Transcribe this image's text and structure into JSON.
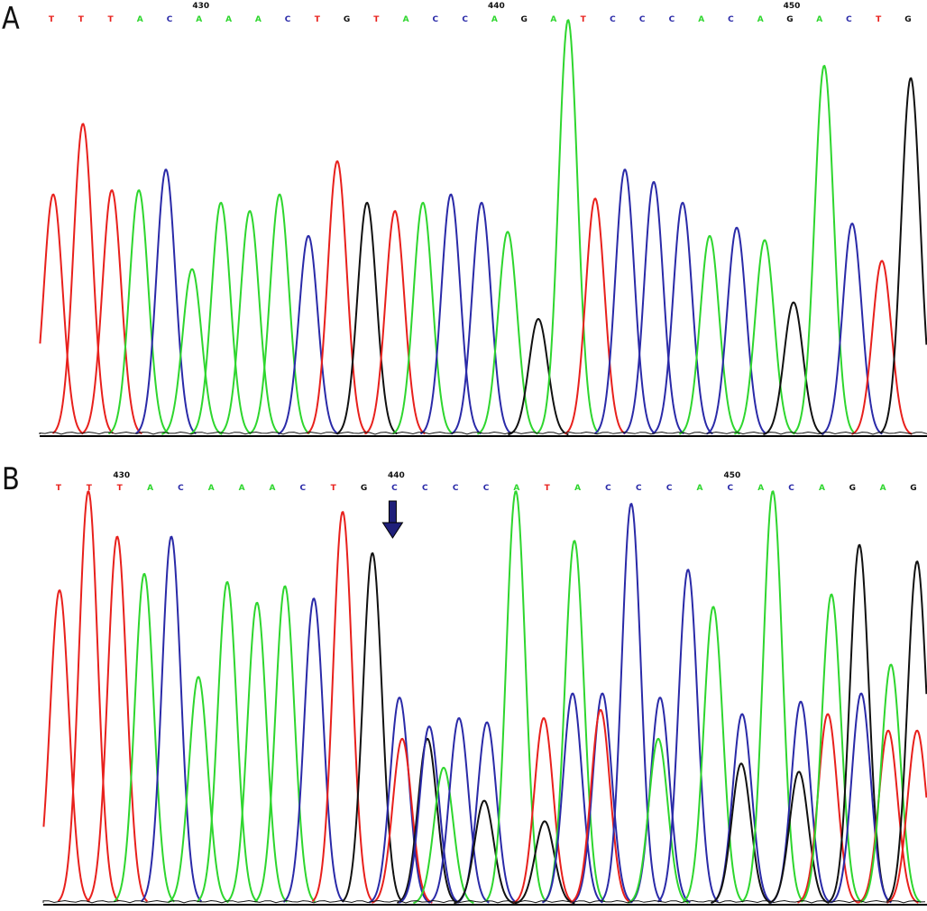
{
  "colors": {
    "A": "#2ed62e",
    "C": "#2a2aa8",
    "G": "#111111",
    "T": "#e8201c",
    "axis": "#000000"
  },
  "chart_data": [
    {
      "type": "line",
      "panel": "A",
      "sequence": [
        "T",
        "T",
        "T",
        "A",
        "C",
        "A",
        "A",
        "A",
        "C",
        "T",
        "G",
        "T",
        "A",
        "C",
        "C",
        "A",
        "G",
        "A",
        "T",
        "C",
        "C",
        "C",
        "A",
        "C",
        "A",
        "G",
        "A",
        "C",
        "T",
        "G"
      ],
      "position_labels": [
        {
          "label": "430",
          "base_index": 5
        },
        {
          "label": "440",
          "base_index": 15
        },
        {
          "label": "450",
          "base_index": 25
        }
      ],
      "peaks": [
        {
          "base": "T",
          "x": 59,
          "h": 0.58
        },
        {
          "base": "T",
          "x": 92,
          "h": 0.75
        },
        {
          "base": "T",
          "x": 124,
          "h": 0.59
        },
        {
          "base": "A",
          "x": 154,
          "h": 0.59
        },
        {
          "base": "C",
          "x": 184,
          "h": 0.64
        },
        {
          "base": "A",
          "x": 213,
          "h": 0.4
        },
        {
          "base": "A",
          "x": 245,
          "h": 0.56
        },
        {
          "base": "A",
          "x": 277,
          "h": 0.54
        },
        {
          "base": "A",
          "x": 310,
          "h": 0.58
        },
        {
          "base": "C",
          "x": 342,
          "h": 0.48
        },
        {
          "base": "T",
          "x": 374,
          "h": 0.66
        },
        {
          "base": "G",
          "x": 407,
          "h": 0.56
        },
        {
          "base": "T",
          "x": 438,
          "h": 0.54
        },
        {
          "base": "A",
          "x": 469,
          "h": 0.56
        },
        {
          "base": "C",
          "x": 500,
          "h": 0.58
        },
        {
          "base": "C",
          "x": 534,
          "h": 0.56
        },
        {
          "base": "A",
          "x": 563,
          "h": 0.49
        },
        {
          "base": "G",
          "x": 597,
          "h": 0.28
        },
        {
          "base": "A",
          "x": 630,
          "h": 1.0
        },
        {
          "base": "T",
          "x": 660,
          "h": 0.57
        },
        {
          "base": "C",
          "x": 693,
          "h": 0.64
        },
        {
          "base": "C",
          "x": 725,
          "h": 0.61
        },
        {
          "base": "C",
          "x": 757,
          "h": 0.56
        },
        {
          "base": "A",
          "x": 787,
          "h": 0.48
        },
        {
          "base": "C",
          "x": 817,
          "h": 0.5
        },
        {
          "base": "A",
          "x": 848,
          "h": 0.47
        },
        {
          "base": "G",
          "x": 880,
          "h": 0.32
        },
        {
          "base": "A",
          "x": 914,
          "h": 0.89
        },
        {
          "base": "C",
          "x": 945,
          "h": 0.51
        },
        {
          "base": "T",
          "x": 978,
          "h": 0.42
        },
        {
          "base": "G",
          "x": 1010,
          "h": 0.86
        }
      ]
    },
    {
      "type": "line",
      "panel": "B",
      "sequence": [
        "T",
        "T",
        "T",
        "A",
        "C",
        "A",
        "A",
        "A",
        "C",
        "T",
        "G",
        "C",
        "C",
        "C",
        "C",
        "A",
        "T",
        "A",
        "C",
        "C",
        "C",
        "A",
        "C",
        "A",
        "C",
        "A",
        "G",
        "A",
        "G"
      ],
      "position_labels": [
        {
          "label": "430",
          "base_index": 2
        },
        {
          "label": "440",
          "base_index": 11
        },
        {
          "label": "450",
          "base_index": 22
        }
      ],
      "marker": {
        "type": "arrow-down",
        "base_index": 11
      },
      "peaks": [
        {
          "base": "T",
          "x": 66,
          "h": 0.76
        },
        {
          "base": "T",
          "x": 98,
          "h": 1.0
        },
        {
          "base": "T",
          "x": 130,
          "h": 0.89
        },
        {
          "base": "A",
          "x": 160,
          "h": 0.8
        },
        {
          "base": "C",
          "x": 190,
          "h": 0.89
        },
        {
          "base": "A",
          "x": 220,
          "h": 0.55
        },
        {
          "base": "A",
          "x": 252,
          "h": 0.78
        },
        {
          "base": "A",
          "x": 285,
          "h": 0.73
        },
        {
          "base": "A",
          "x": 316,
          "h": 0.77
        },
        {
          "base": "C",
          "x": 348,
          "h": 0.74
        },
        {
          "base": "T",
          "x": 380,
          "h": 0.95
        },
        {
          "base": "G",
          "x": 413,
          "h": 0.85
        },
        {
          "base": "C",
          "x": 443,
          "h": 0.5
        },
        {
          "base": "T",
          "x": 446,
          "h": 0.4
        },
        {
          "base": "G",
          "x": 474,
          "h": 0.4
        },
        {
          "base": "C",
          "x": 476,
          "h": 0.43
        },
        {
          "base": "A",
          "x": 492,
          "h": 0.33
        },
        {
          "base": "C",
          "x": 509,
          "h": 0.45
        },
        {
          "base": "C",
          "x": 540,
          "h": 0.44
        },
        {
          "base": "G",
          "x": 537,
          "h": 0.25
        },
        {
          "base": "A",
          "x": 572,
          "h": 1.0
        },
        {
          "base": "T",
          "x": 603,
          "h": 0.45
        },
        {
          "base": "G",
          "x": 604,
          "h": 0.2
        },
        {
          "base": "A",
          "x": 637,
          "h": 0.88
        },
        {
          "base": "C",
          "x": 635,
          "h": 0.51
        },
        {
          "base": "C",
          "x": 668,
          "h": 0.51
        },
        {
          "base": "T",
          "x": 666,
          "h": 0.47
        },
        {
          "base": "C",
          "x": 700,
          "h": 0.97
        },
        {
          "base": "C",
          "x": 732,
          "h": 0.5
        },
        {
          "base": "A",
          "x": 730,
          "h": 0.4
        },
        {
          "base": "C",
          "x": 763,
          "h": 0.81
        },
        {
          "base": "A",
          "x": 791,
          "h": 0.72
        },
        {
          "base": "C",
          "x": 823,
          "h": 0.46
        },
        {
          "base": "G",
          "x": 822,
          "h": 0.34
        },
        {
          "base": "A",
          "x": 857,
          "h": 1.0
        },
        {
          "base": "C",
          "x": 888,
          "h": 0.49
        },
        {
          "base": "G",
          "x": 886,
          "h": 0.32
        },
        {
          "base": "T",
          "x": 918,
          "h": 0.46
        },
        {
          "base": "A",
          "x": 922,
          "h": 0.75
        },
        {
          "base": "G",
          "x": 953,
          "h": 0.87
        },
        {
          "base": "C",
          "x": 955,
          "h": 0.51
        },
        {
          "base": "T",
          "x": 985,
          "h": 0.42
        },
        {
          "base": "A",
          "x": 988,
          "h": 0.58
        },
        {
          "base": "G",
          "x": 1017,
          "h": 0.83
        },
        {
          "base": "T",
          "x": 1017,
          "h": 0.42
        }
      ]
    }
  ],
  "panels": [
    {
      "letter": "A"
    },
    {
      "letter": "B"
    }
  ]
}
